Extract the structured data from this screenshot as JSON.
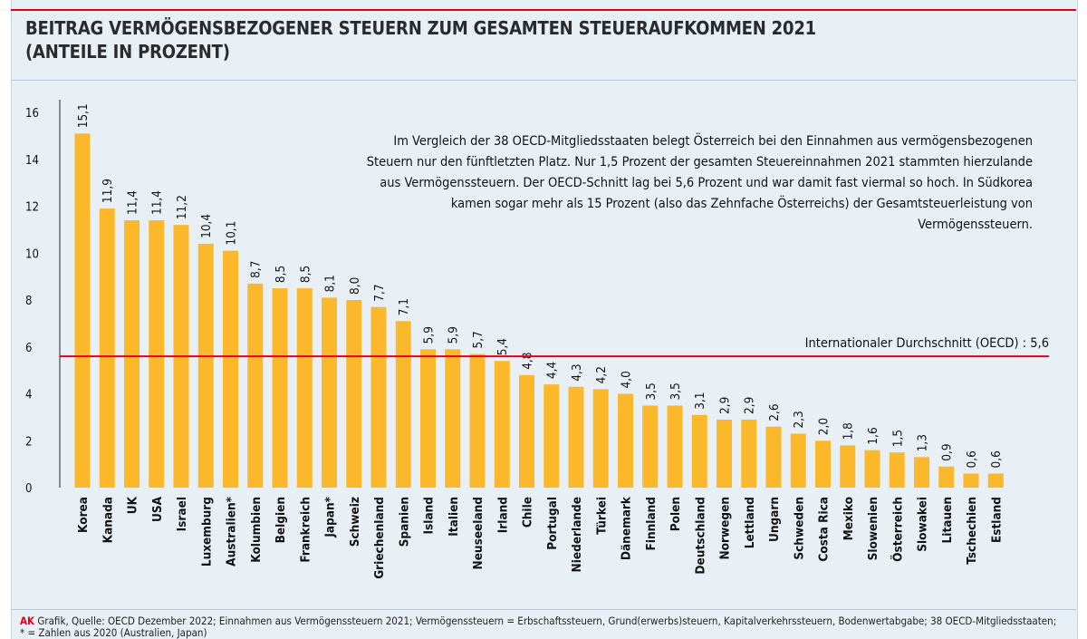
{
  "title_line1": "BEITRAG VERMÖGENSBEZOGENER STEUERN ZUM GESAMTEN STEUERAUFKOMMEN 2021",
  "title_line2": "(ANTEILE IN PROZENT)",
  "annotation": "Im Vergleich der 38 OECD-Mitgliedsstaaten belegt Österreich bei den Einnahmen aus vermögensbezogenen Steuern nur den fünftletzten Platz. Nur 1,5 Prozent der gesamten Steuereinnahmen 2021 stammten hierzulande aus Vermögenssteuern. Der OECD-Schnitt lag bei 5,6 Prozent und war damit fast viermal so hoch. In Südkorea kamen sogar mehr als 15 Prozent (also das Zehnfache Österreichs) der Gesamtsteuerleistung von Vermögenssteuern.",
  "average_label": "Internationaler Durchschnitt (OECD) : 5,6",
  "footer_brand": "AK",
  "footer_text": "Grafik, Quelle: OECD Dezember 2022; Einnahmen aus Vermögenssteuern 2021; Vermögenssteuern = Erbschaftssteuern, Grund(erwerbs)steuern, Kapitalverkehrssteuern, Bodenwertabgabe; 38 OECD-Mitgliedsstaaten; * = Zahlen aus 2020 (Australien, Japan)",
  "colors": {
    "bar": "#fbb82a",
    "average_line": "#e3001b",
    "highlight_label": "#e3001b",
    "axis": "#222222",
    "background": "#e8f0f6"
  },
  "chart_data": {
    "type": "bar",
    "categories": [
      "Korea",
      "Kanada",
      "UK",
      "USA",
      "Israel",
      "Luxemburg",
      "Australien*",
      "Kolumbien",
      "Belgien",
      "Frankreich",
      "Japan*",
      "Schweiz",
      "Griechenland",
      "Spanien",
      "Island",
      "Italien",
      "Neuseeland",
      "Irland",
      "Chile",
      "Portugal",
      "Niederlande",
      "Türkei",
      "Dänemark",
      "Finnland",
      "Polen",
      "Deutschland",
      "Norwegen",
      "Lettland",
      "Ungarn",
      "Schweden",
      "Costa Rica",
      "Mexiko",
      "Slowenien",
      "Österreich",
      "Slowakei",
      "Litauen",
      "Tschechien",
      "Estland"
    ],
    "values": [
      15.1,
      11.9,
      11.4,
      11.4,
      11.2,
      10.4,
      10.1,
      8.7,
      8.5,
      8.5,
      8.1,
      8.0,
      7.7,
      7.1,
      5.9,
      5.9,
      5.7,
      5.4,
      4.8,
      4.4,
      4.3,
      4.2,
      4.0,
      3.5,
      3.5,
      3.1,
      2.9,
      2.9,
      2.6,
      2.3,
      2.0,
      1.8,
      1.6,
      1.5,
      1.3,
      0.9,
      0.6,
      0.6
    ],
    "value_labels": [
      "15,1",
      "11,9",
      "11,4",
      "11,4",
      "11,2",
      "10,4",
      "10,1",
      "8,7",
      "8,5",
      "8,5",
      "8,1",
      "8,0",
      "7,7",
      "7,1",
      "5,9",
      "5,9",
      "5,7",
      "5,4",
      "4,8",
      "4,4",
      "4,3",
      "4,2",
      "4,0",
      "3,5",
      "3,5",
      "3,1",
      "2,9",
      "2,9",
      "2,6",
      "2,3",
      "2,0",
      "1,8",
      "1,6",
      "1,5",
      "1,3",
      "0,9",
      "0,6",
      "0,6"
    ],
    "highlight_category": "Österreich",
    "average": 5.6,
    "yticks": [
      0,
      2,
      4,
      6,
      8,
      10,
      12,
      14,
      16
    ],
    "ylim": [
      0,
      16
    ],
    "xlabel": "",
    "ylabel": "",
    "grid": false,
    "legend": "none"
  }
}
